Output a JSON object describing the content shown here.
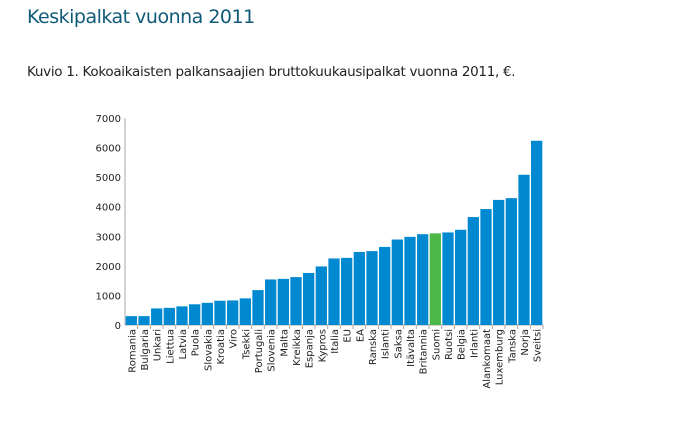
{
  "title": "Keskipalkat vuonna 2011",
  "chart_data": {
    "type": "bar",
    "title": "Kuvio 1. Kokoaikaisten palkansaajien bruttokuukausipalkat vuonna 2011, €.",
    "xlabel": "",
    "ylabel": "",
    "ylim": [
      0,
      7000
    ],
    "yticks": [
      0,
      1000,
      2000,
      3000,
      4000,
      5000,
      6000,
      7000
    ],
    "categories": [
      "Romania",
      "Bulgaria",
      "Unkari",
      "Liettua",
      "Latvia",
      "Puola",
      "Slovakia",
      "Kroatia",
      "Viro",
      "Tsekki",
      "Portugali",
      "Slovenia",
      "Malta",
      "Kreikka",
      "Espanja",
      "Kypros",
      "Italia",
      "EU",
      "EA",
      "Ranska",
      "Islanti",
      "Saksa",
      "Itävalta",
      "Britannia",
      "Suomi",
      "Ruotsi",
      "Belgia",
      "Irlanti",
      "Alankomaat",
      "Luxemburg",
      "Tanska",
      "Norja",
      "Sveitsi"
    ],
    "values": [
      300,
      300,
      560,
      580,
      630,
      700,
      750,
      820,
      830,
      900,
      1180,
      1540,
      1560,
      1620,
      1760,
      1980,
      2250,
      2270,
      2470,
      2500,
      2640,
      2890,
      2980,
      3070,
      3100,
      3130,
      3220,
      3650,
      3920,
      4230,
      4290,
      5080,
      6230
    ],
    "highlight": "Suomi",
    "colors": {
      "bar": "#0088d1",
      "highlight": "#4cb848",
      "axis": "#aaaaaa"
    }
  }
}
